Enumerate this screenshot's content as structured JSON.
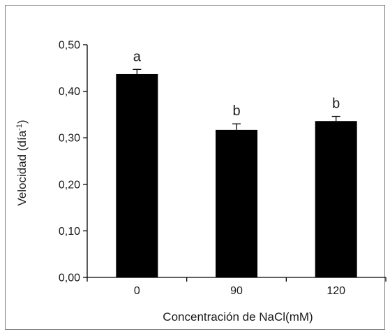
{
  "chart_data": {
    "type": "bar",
    "categories": [
      "0",
      "90",
      "120"
    ],
    "values": [
      0.437,
      0.317,
      0.336
    ],
    "errors": [
      0.01,
      0.013,
      0.01
    ],
    "significance": [
      "a",
      "b",
      "b"
    ],
    "xlabel": "Concentración de NaCl(mM)",
    "ylabel": {
      "main": "Velocidad (día",
      "sup": "-1",
      "close": ")"
    },
    "ylim": [
      0,
      0.5
    ],
    "yticks": [
      "0,00",
      "0,10",
      "0,20",
      "0,30",
      "0,40",
      "0,50"
    ],
    "grid": false,
    "legend": "none",
    "colors": {
      "bar": "#000000",
      "axis": "#000000",
      "frame": "#7f7f7f"
    }
  }
}
